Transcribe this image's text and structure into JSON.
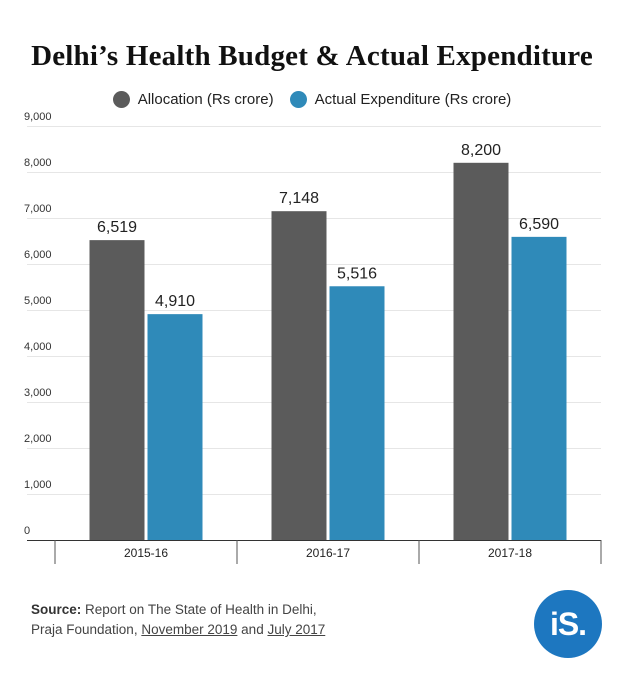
{
  "chart_data": {
    "type": "bar",
    "title": "Delhi’s Health Budget & Actual Expenditure",
    "categories": [
      "2015-16",
      "2016-17",
      "2017-18"
    ],
    "series": [
      {
        "name": "Allocation (Rs crore)",
        "values": [
          6519,
          7148,
          8200
        ],
        "labels": [
          "6,519",
          "7,148",
          "8,200"
        ],
        "color": "#5b5b5b"
      },
      {
        "name": "Actual Expenditure (Rs crore)",
        "values": [
          4910,
          5516,
          6590
        ],
        "labels": [
          "4,910",
          "5,516",
          "6,590"
        ],
        "color": "#2f8ab9"
      }
    ],
    "ylim": [
      0,
      9000
    ],
    "yticks": [
      "0",
      "1,000",
      "2,000",
      "3,000",
      "4,000",
      "5,000",
      "6,000",
      "7,000",
      "8,000",
      "9,000"
    ],
    "grid": true,
    "legend": "top-center"
  },
  "source": {
    "label": "Source:",
    "text_1": "Report on The State of Health in Delhi,",
    "text_2": "Praja Foundation,",
    "link_1": "November 2019",
    "and": "and",
    "link_2": "July 2017"
  },
  "logo": {
    "text": "iS."
  }
}
